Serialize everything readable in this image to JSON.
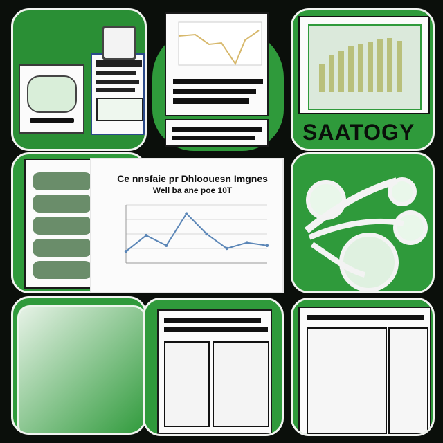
{
  "collage": {
    "tiles": [
      {
        "name": "top-left"
      },
      {
        "name": "top-middle"
      },
      {
        "name": "top-right"
      },
      {
        "name": "middle-left"
      },
      {
        "name": "middle-center"
      },
      {
        "name": "middle-right"
      },
      {
        "name": "bottom-left"
      },
      {
        "name": "bottom-middle"
      },
      {
        "name": "bottom-right"
      }
    ],
    "big_label": "SAATOGY",
    "center_title": "Ce nnsfaie pr Dhloouesn Imgnes",
    "center_subtitle": "Well ba ane poe 10T"
  },
  "chart_data": {
    "type": "line",
    "title": "",
    "x": [
      1,
      2,
      3,
      4,
      5,
      6,
      7,
      8
    ],
    "values": [
      0.8,
      1.9,
      1.2,
      3.4,
      2.0,
      1.0,
      1.4,
      1.2
    ],
    "ylim": [
      0,
      4
    ]
  },
  "colors": {
    "green": "#2f9a3b",
    "paper": "#fbfbfb",
    "ink": "#1a1a1a"
  }
}
